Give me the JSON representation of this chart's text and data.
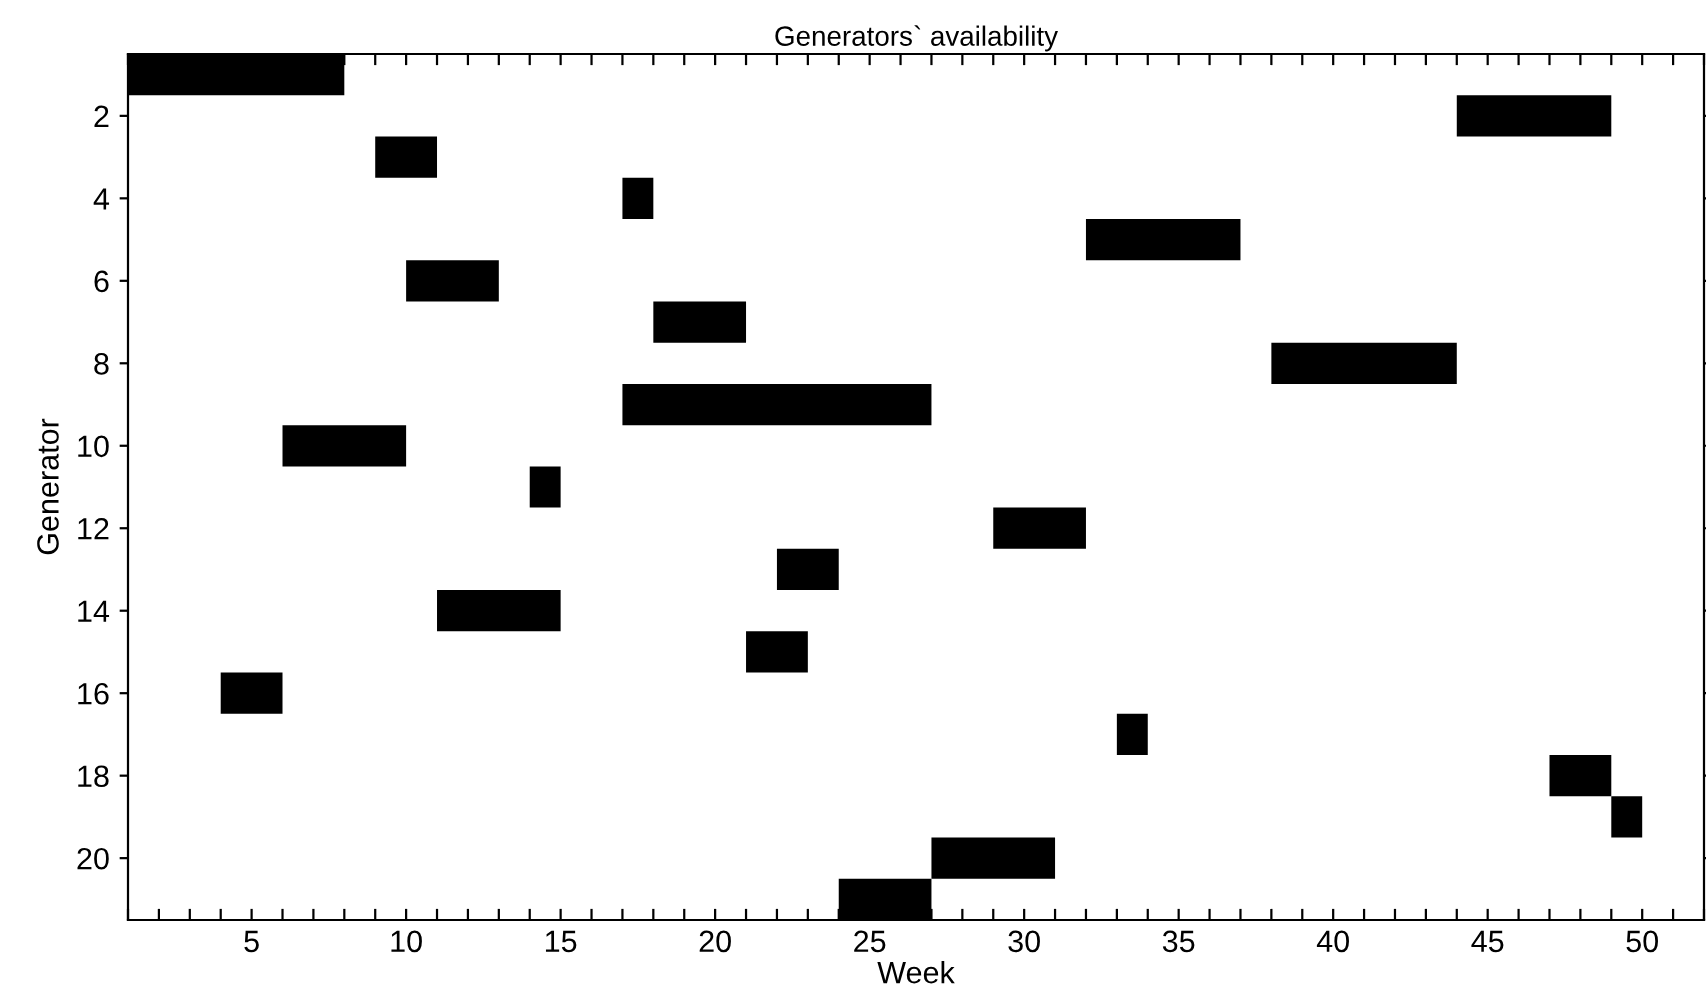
{
  "chart_data": {
    "type": "bar",
    "orientation": "horizontal",
    "title": "Generators` availability",
    "xlabel": "Week",
    "ylabel": "Generator",
    "categories": [
      null,
      "2",
      null,
      "4",
      null,
      "6",
      null,
      "8",
      null,
      "10",
      null,
      "12",
      null,
      "14",
      null,
      "16",
      null,
      "18",
      null,
      "20",
      null
    ],
    "base": [
      1,
      44,
      9,
      17,
      32,
      10,
      18,
      38,
      17,
      6,
      14,
      29,
      22,
      11,
      21,
      4,
      33,
      47,
      49,
      27,
      24
    ],
    "values": [
      7,
      5,
      2,
      1,
      5,
      3,
      3,
      6,
      10,
      4,
      1,
      3,
      2,
      4,
      2,
      2,
      1,
      2,
      1,
      4,
      3
    ],
    "color": "#000000",
    "xlim": [
      1,
      52
    ],
    "xticks": [
      {
        "value": 1,
        "label": null
      },
      {
        "value": 2,
        "label": null
      },
      {
        "value": 3,
        "label": null
      },
      {
        "value": 4,
        "label": null
      },
      5,
      {
        "value": 6,
        "label": null
      },
      {
        "value": 7,
        "label": null
      },
      {
        "value": 8,
        "label": null
      },
      {
        "value": 9,
        "label": null
      },
      10,
      {
        "value": 11,
        "label": null
      },
      {
        "value": 12,
        "label": null
      },
      {
        "value": 13,
        "label": null
      },
      {
        "value": 14,
        "label": null
      },
      15,
      {
        "value": 16,
        "label": null
      },
      {
        "value": 17,
        "label": null
      },
      {
        "value": 18,
        "label": null
      },
      {
        "value": 19,
        "label": null
      },
      20,
      {
        "value": 21,
        "label": null
      },
      {
        "value": 22,
        "label": null
      },
      {
        "value": 23,
        "label": null
      },
      {
        "value": 24,
        "label": null
      },
      25,
      {
        "value": 26,
        "label": null
      },
      {
        "value": 27,
        "label": null
      },
      {
        "value": 28,
        "label": null
      },
      {
        "value": 29,
        "label": null
      },
      30,
      {
        "value": 31,
        "label": null
      },
      {
        "value": 32,
        "label": null
      },
      {
        "value": 33,
        "label": null
      },
      {
        "value": 34,
        "label": null
      },
      35,
      {
        "value": 36,
        "label": null
      },
      {
        "value": 37,
        "label": null
      },
      {
        "value": 38,
        "label": null
      },
      {
        "value": 39,
        "label": null
      },
      40,
      {
        "value": 41,
        "label": null
      },
      {
        "value": 42,
        "label": null
      },
      {
        "value": 43,
        "label": null
      },
      {
        "value": 44,
        "label": null
      },
      45,
      {
        "value": 46,
        "label": null
      },
      {
        "value": 47,
        "label": null
      },
      {
        "value": 48,
        "label": null
      },
      {
        "value": 49,
        "label": null
      },
      50,
      {
        "value": 51,
        "label": null
      },
      {
        "value": 52,
        "label": null
      }
    ],
    "grid": false,
    "legend": false
  }
}
